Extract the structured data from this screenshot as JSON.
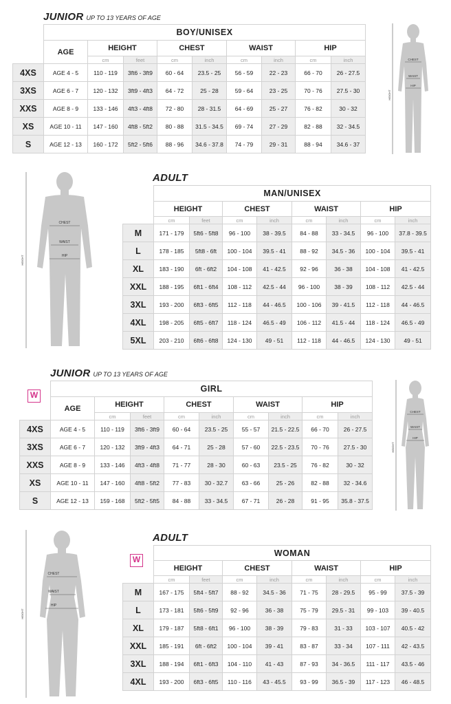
{
  "junior_boy": {
    "title": "JUNIOR",
    "subtitle": "UP TO 13 YEARS OF AGE",
    "group": "BOY/UNISEX",
    "headers": {
      "age": "AGE",
      "height": "HEIGHT",
      "chest": "CHEST",
      "waist": "WAIST",
      "hip": "HIP"
    },
    "units": {
      "cm": "cm",
      "feet": "feet",
      "inch": "inch"
    },
    "rows": [
      {
        "size": "4XS",
        "age": "AGE 4 - 5",
        "h_cm": "110 - 119",
        "h_ft": "3ft6 - 3ft9",
        "c_cm": "60 - 64",
        "c_in": "23.5 - 25",
        "w_cm": "56 - 59",
        "w_in": "22 - 23",
        "hp_cm": "66 - 70",
        "hp_in": "26 - 27.5"
      },
      {
        "size": "3XS",
        "age": "AGE 6 - 7",
        "h_cm": "120 - 132",
        "h_ft": "3ft9 - 4ft3",
        "c_cm": "64 - 72",
        "c_in": "25 - 28",
        "w_cm": "59 - 64",
        "w_in": "23 - 25",
        "hp_cm": "70 - 76",
        "hp_in": "27.5 - 30"
      },
      {
        "size": "XXS",
        "age": "AGE 8 - 9",
        "h_cm": "133 - 146",
        "h_ft": "4ft3 - 4ft8",
        "c_cm": "72 - 80",
        "c_in": "28 - 31.5",
        "w_cm": "64 - 69",
        "w_in": "25 - 27",
        "hp_cm": "76 - 82",
        "hp_in": "30 - 32"
      },
      {
        "size": "XS",
        "age": "AGE 10 - 11",
        "h_cm": "147 - 160",
        "h_ft": "4ft8 - 5ft2",
        "c_cm": "80 - 88",
        "c_in": "31.5 - 34.5",
        "w_cm": "69 - 74",
        "w_in": "27 - 29",
        "hp_cm": "82 - 88",
        "hp_in": "32 - 34.5"
      },
      {
        "size": "S",
        "age": "AGE 12 - 13",
        "h_cm": "160 - 172",
        "h_ft": "5ft2 - 5ft6",
        "c_cm": "88 - 96",
        "c_in": "34.6 - 37.8",
        "w_cm": "74 - 79",
        "w_in": "29 - 31",
        "hp_cm": "88 - 94",
        "hp_in": "34.6 - 37"
      }
    ]
  },
  "adult_man": {
    "title": "ADULT",
    "group": "MAN/UNISEX",
    "headers": {
      "height": "HEIGHT",
      "chest": "CHEST",
      "waist": "WAIST",
      "hip": "HIP"
    },
    "units": {
      "cm": "cm",
      "feet": "feet",
      "inch": "inch"
    },
    "rows": [
      {
        "size": "M",
        "h_cm": "171 - 179",
        "h_ft": "5ft6 - 5ft8",
        "c_cm": "96 - 100",
        "c_in": "38 - 39.5",
        "w_cm": "84 - 88",
        "w_in": "33 - 34.5",
        "hp_cm": "96 - 100",
        "hp_in": "37.8 - 39.5"
      },
      {
        "size": "L",
        "h_cm": "178 - 185",
        "h_ft": "5ft8 - 6ft",
        "c_cm": "100 - 104",
        "c_in": "39.5 - 41",
        "w_cm": "88 - 92",
        "w_in": "34.5 - 36",
        "hp_cm": "100 - 104",
        "hp_in": "39.5 - 41"
      },
      {
        "size": "XL",
        "h_cm": "183 - 190",
        "h_ft": "6ft - 6ft2",
        "c_cm": "104 - 108",
        "c_in": "41 - 42.5",
        "w_cm": "92 - 96",
        "w_in": "36 - 38",
        "hp_cm": "104 - 108",
        "hp_in": "41 - 42.5"
      },
      {
        "size": "XXL",
        "h_cm": "188 - 195",
        "h_ft": "6ft1 - 6ft4",
        "c_cm": "108 - 112",
        "c_in": "42.5 - 44",
        "w_cm": "96 - 100",
        "w_in": "38 - 39",
        "hp_cm": "108 - 112",
        "hp_in": "42.5 - 44"
      },
      {
        "size": "3XL",
        "h_cm": "193 - 200",
        "h_ft": "6ft3 - 6ft5",
        "c_cm": "112 - 118",
        "c_in": "44 - 46.5",
        "w_cm": "100 - 106",
        "w_in": "39 - 41.5",
        "hp_cm": "112 - 118",
        "hp_in": "44 - 46.5"
      },
      {
        "size": "4XL",
        "h_cm": "198 - 205",
        "h_ft": "6ft5 - 6ft7",
        "c_cm": "118 - 124",
        "c_in": "46.5 - 49",
        "w_cm": "106 - 112",
        "w_in": "41.5 - 44",
        "hp_cm": "118 - 124",
        "hp_in": "46.5 - 49"
      },
      {
        "size": "5XL",
        "h_cm": "203 - 210",
        "h_ft": "6ft6 - 6ft8",
        "c_cm": "124 - 130",
        "c_in": "49 - 51",
        "w_cm": "112 - 118",
        "w_in": "44 - 46.5",
        "hp_cm": "124 - 130",
        "hp_in": "49 - 51"
      }
    ]
  },
  "junior_girl": {
    "title": "JUNIOR",
    "subtitle": "UP TO 13 YEARS OF AGE",
    "group": "GIRL",
    "badge": "W",
    "headers": {
      "age": "AGE",
      "height": "HEIGHT",
      "chest": "CHEST",
      "waist": "WAIST",
      "hip": "HIP"
    },
    "units": {
      "cm": "cm",
      "feet": "feet",
      "inch": "inch"
    },
    "rows": [
      {
        "size": "4XS",
        "age": "AGE 4 - 5",
        "h_cm": "110 - 119",
        "h_ft": "3ft6 - 3ft9",
        "c_cm": "60 - 64",
        "c_in": "23.5 - 25",
        "w_cm": "55 - 57",
        "w_in": "21.5 - 22.5",
        "hp_cm": "66 - 70",
        "hp_in": "26 - 27.5"
      },
      {
        "size": "3XS",
        "age": "AGE 6 - 7",
        "h_cm": "120 - 132",
        "h_ft": "3ft9 - 4ft3",
        "c_cm": "64 - 71",
        "c_in": "25 - 28",
        "w_cm": "57 - 60",
        "w_in": "22.5 - 23.5",
        "hp_cm": "70 - 76",
        "hp_in": "27.5 - 30"
      },
      {
        "size": "XXS",
        "age": "AGE 8 - 9",
        "h_cm": "133 - 146",
        "h_ft": "4ft3 - 4ft8",
        "c_cm": "71 - 77",
        "c_in": "28 - 30",
        "w_cm": "60 - 63",
        "w_in": "23.5 - 25",
        "hp_cm": "76 - 82",
        "hp_in": "30 - 32"
      },
      {
        "size": "XS",
        "age": "AGE 10 - 11",
        "h_cm": "147 - 160",
        "h_ft": "4ft8 - 5ft2",
        "c_cm": "77 - 83",
        "c_in": "30 - 32.7",
        "w_cm": "63 - 66",
        "w_in": "25 - 26",
        "hp_cm": "82 - 88",
        "hp_in": "32 - 34.6"
      },
      {
        "size": "S",
        "age": "AGE 12 - 13",
        "h_cm": "159 - 168",
        "h_ft": "5ft2 - 5ft5",
        "c_cm": "84 - 88",
        "c_in": "33 - 34.5",
        "w_cm": "67 - 71",
        "w_in": "26 - 28",
        "hp_cm": "91 - 95",
        "hp_in": "35.8 - 37.5"
      }
    ]
  },
  "adult_woman": {
    "title": "ADULT",
    "group": "WOMAN",
    "badge": "W",
    "headers": {
      "height": "HEIGHT",
      "chest": "CHEST",
      "waist": "WAIST",
      "hip": "HIP"
    },
    "units": {
      "cm": "cm",
      "feet": "feet",
      "inch": "inch"
    },
    "rows": [
      {
        "size": "M",
        "h_cm": "167 - 175",
        "h_ft": "5ft4 - 5ft7",
        "c_cm": "88 - 92",
        "c_in": "34.5 - 36",
        "w_cm": "71 - 75",
        "w_in": "28 - 29.5",
        "hp_cm": "95 - 99",
        "hp_in": "37.5 - 39"
      },
      {
        "size": "L",
        "h_cm": "173 - 181",
        "h_ft": "5ft6 - 5ft9",
        "c_cm": "92 - 96",
        "c_in": "36 - 38",
        "w_cm": "75 - 79",
        "w_in": "29.5 - 31",
        "hp_cm": "99 - 103",
        "hp_in": "39 - 40.5"
      },
      {
        "size": "XL",
        "h_cm": "179 - 187",
        "h_ft": "5ft8 - 6ft1",
        "c_cm": "96 - 100",
        "c_in": "38 - 39",
        "w_cm": "79 - 83",
        "w_in": "31 - 33",
        "hp_cm": "103 - 107",
        "hp_in": "40.5 - 42"
      },
      {
        "size": "XXL",
        "h_cm": "185 - 191",
        "h_ft": "6ft - 6ft2",
        "c_cm": "100 - 104",
        "c_in": "39 - 41",
        "w_cm": "83 - 87",
        "w_in": "33 - 34",
        "hp_cm": "107 - 111",
        "hp_in": "42 - 43.5"
      },
      {
        "size": "3XL",
        "h_cm": "188 - 194",
        "h_ft": "6ft1 - 6ft3",
        "c_cm": "104 - 110",
        "c_in": "41 - 43",
        "w_cm": "87 - 93",
        "w_in": "34 - 36.5",
        "hp_cm": "111 - 117",
        "hp_in": "43.5 - 46"
      },
      {
        "size": "4XL",
        "h_cm": "193 - 200",
        "h_ft": "6ft3 - 6ft5",
        "c_cm": "110 - 116",
        "c_in": "43 - 45.5",
        "w_cm": "93 - 99",
        "w_in": "36.5 - 39",
        "hp_cm": "117 - 123",
        "hp_in": "46 - 48.5"
      }
    ]
  },
  "figure_labels": {
    "chest": "CHEST",
    "waist": "WAIST",
    "hip": "HIP",
    "height": "HEIGHT"
  },
  "colors": {
    "shaded": "#ededed",
    "border": "#d2d2d2",
    "figure": "#c8c8c8",
    "badge": "#d4338a"
  }
}
